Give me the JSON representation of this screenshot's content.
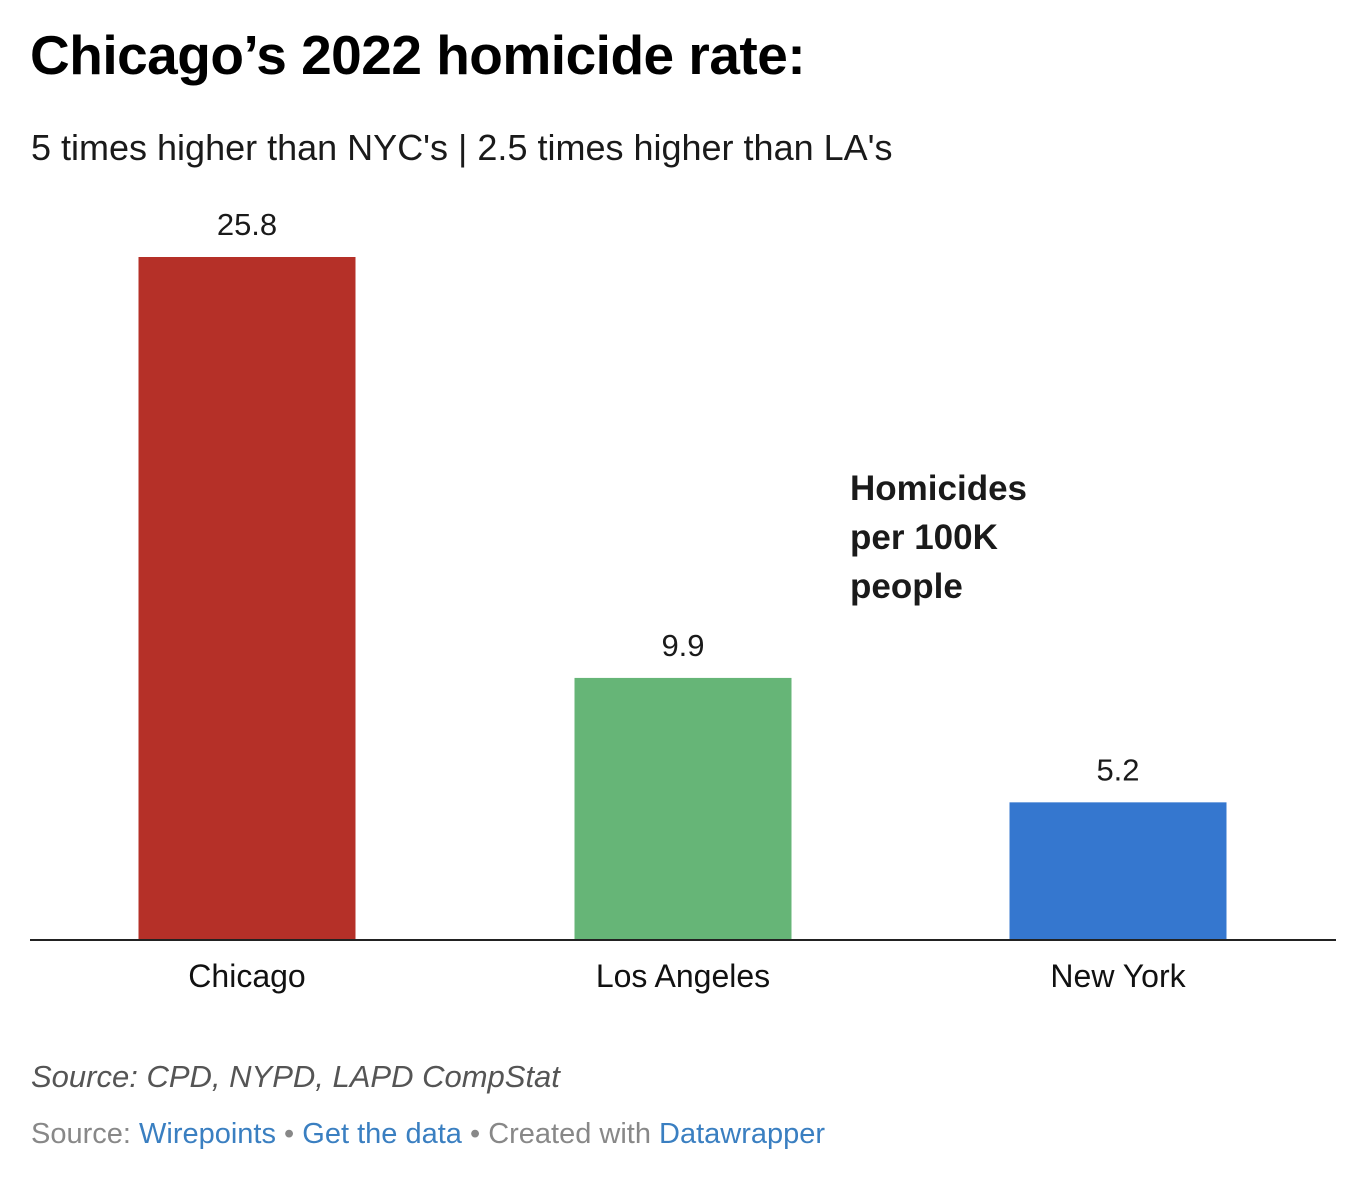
{
  "header": {
    "title": "Chicago’s 2022 homicide rate:",
    "subtitle": "5 times higher than NYC's | 2.5 times higher than LA's"
  },
  "chart_data": {
    "type": "bar",
    "categories": [
      "Chicago",
      "Los Angeles",
      "New York"
    ],
    "values": [
      25.8,
      9.9,
      5.2
    ],
    "value_labels": [
      "25.8",
      "9.9",
      "5.2"
    ],
    "colors": [
      "#b53028",
      "#66b577",
      "#3577cf"
    ],
    "annotation": [
      "Homicides",
      "per 100K",
      "people"
    ],
    "ylim": [
      0,
      25.8
    ],
    "grid": false,
    "title": "Chicago’s 2022 homicide rate:",
    "xlabel": "",
    "ylabel": ""
  },
  "notes": {
    "source_note": "Source: CPD, NYPD, LAPD CompStat"
  },
  "footer": {
    "source_prefix": "Source: ",
    "source_link": "Wirepoints",
    "separator": " • ",
    "data_link": "Get the data",
    "created_prefix": "Created with ",
    "created_link": "Datawrapper"
  }
}
